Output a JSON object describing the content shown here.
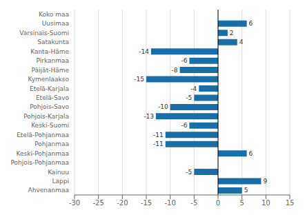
{
  "chart_data": {
    "type": "bar",
    "orientation": "horizontal",
    "categories": [
      "Koko maa",
      "Uusimaa",
      "Varsinais-Suomi",
      "Satakunta",
      "Kanta-Häme",
      "Pirkanmaa",
      "Päijät-Häme",
      "Kymenlaakso",
      "Etelä-Karjala",
      "Etelä-Savo",
      "Pohjois-Savo",
      "Pohjois-Karjala",
      "Keski-Suomi",
      "Etelä-Pohjanmaa",
      "Pohjanmaa",
      "Keski-Pohjanmaa",
      "Pohjois-Pohjanmaa",
      "Kainuu",
      "Lappi",
      "Ahvenanmaa"
    ],
    "values": [
      0,
      6,
      2,
      4,
      -14,
      -6,
      -8,
      -15,
      -4,
      -5,
      -10,
      -13,
      -6,
      -11,
      -11,
      6,
      0,
      -5,
      9,
      5
    ],
    "color": "#1a6ea8",
    "xlim": [
      -30,
      15
    ],
    "xticks": [
      -30,
      -25,
      -20,
      -15,
      -10,
      -5,
      0,
      5,
      10,
      15
    ],
    "grid": true,
    "data_labels": true
  }
}
